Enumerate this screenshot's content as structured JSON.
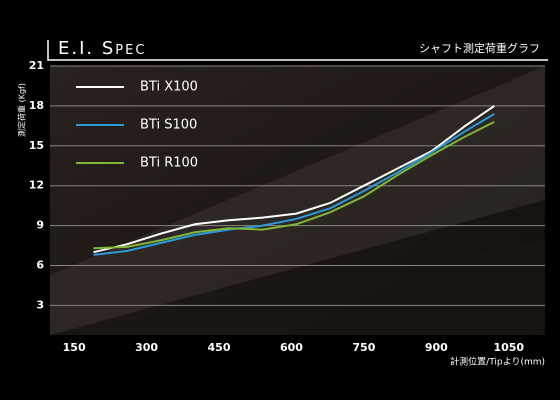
{
  "chart_data": {
    "type": "line",
    "title": "E.I. Spec",
    "subtitle": "シャフト測定荷重グラフ",
    "y_label": "測定荷重 (Kgf)",
    "x_label": "計測位置/Tipより(mm)",
    "x": [
      190,
      260,
      330,
      400,
      470,
      540,
      610,
      680,
      750,
      820,
      890,
      960,
      1020
    ],
    "series": [
      {
        "name": "BTi X100",
        "color": "#ffffff",
        "values": [
          7.0,
          7.6,
          8.4,
          9.1,
          9.4,
          9.6,
          9.9,
          10.7,
          12.0,
          13.3,
          14.6,
          16.5,
          18.0
        ]
      },
      {
        "name": "BTi S100",
        "color": "#2a9ad8",
        "values": [
          6.8,
          7.1,
          7.7,
          8.3,
          8.7,
          9.0,
          9.5,
          10.3,
          11.6,
          13.0,
          14.5,
          16.1,
          17.4
        ]
      },
      {
        "name": "BTi R100",
        "color": "#7fb636",
        "values": [
          7.3,
          7.4,
          7.9,
          8.5,
          8.8,
          8.7,
          9.1,
          10.0,
          11.2,
          12.8,
          14.3,
          15.7,
          16.8
        ]
      }
    ],
    "xlim": [
      100,
      1125
    ],
    "ylim": [
      1,
      21
    ],
    "xticks": [
      150,
      300,
      450,
      600,
      750,
      900,
      1050
    ],
    "yticks": [
      3,
      6,
      9,
      12,
      15,
      18,
      21
    ],
    "grid": true
  }
}
